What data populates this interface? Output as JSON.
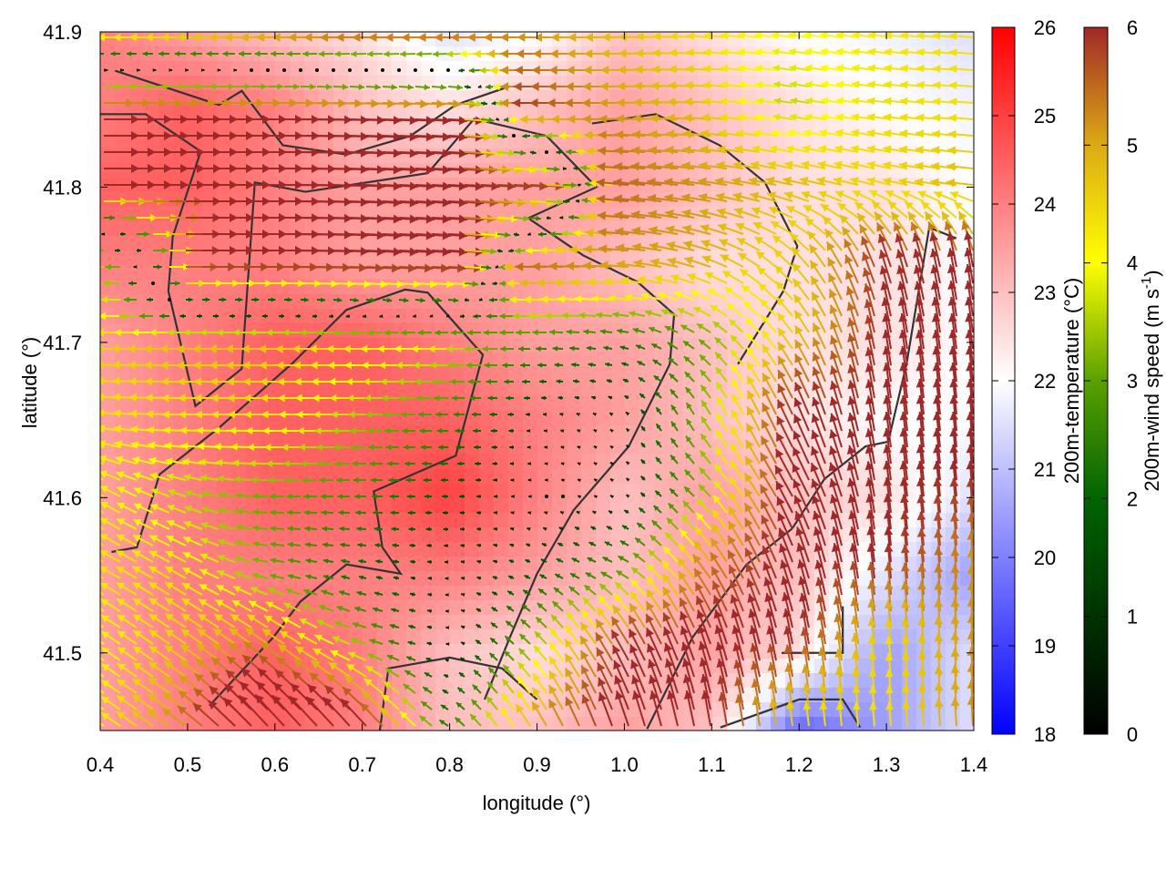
{
  "chart_data": {
    "type": "heatmap",
    "subtype": "vector-field-over-heatmap-with-contours",
    "xlabel": "longitude (°)",
    "ylabel": "latitude (°)",
    "xlim": [
      0.4,
      1.4
    ],
    "ylim": [
      41.45,
      41.9
    ],
    "xticks": [
      "0.4",
      "0.5",
      "0.6",
      "0.7",
      "0.8",
      "0.9",
      "1.0",
      "1.1",
      "1.2",
      "1.3",
      "1.4"
    ],
    "yticks": [
      "41.5",
      "41.6",
      "41.7",
      "41.8",
      "41.9"
    ],
    "grid_lon": [
      0.4,
      0.5,
      0.6,
      0.7,
      0.8,
      0.9,
      1.0,
      1.1,
      1.2,
      1.3,
      1.4
    ],
    "grid_lat": [
      41.9,
      41.85,
      41.8,
      41.75,
      41.7,
      41.65,
      41.6,
      41.55,
      41.5,
      41.45
    ],
    "temperature": [
      [
        24,
        23.5,
        23,
        22.5,
        21.5,
        22,
        23,
        22.5,
        22,
        21.8,
        21.5
      ],
      [
        24,
        24.5,
        24,
        23,
        22.5,
        23,
        23.5,
        23,
        22.5,
        22,
        21.8
      ],
      [
        24.5,
        24.5,
        24,
        23.5,
        23.5,
        23.5,
        23.5,
        23,
        22.5,
        22.5,
        22
      ],
      [
        24,
        24,
        24,
        23.5,
        23.5,
        23.5,
        23,
        22.5,
        22.5,
        22.5,
        22
      ],
      [
        23.5,
        24,
        24.5,
        24.5,
        24,
        23.5,
        23.5,
        23,
        22.5,
        22.5,
        22
      ],
      [
        23.5,
        24,
        24.5,
        24.5,
        24.5,
        24,
        23.5,
        23,
        22.5,
        22,
        22
      ],
      [
        23.5,
        24,
        24.5,
        24.5,
        25,
        24,
        23,
        23.5,
        23,
        22.5,
        21.5
      ],
      [
        23.5,
        24,
        24,
        24,
        24,
        23.5,
        23,
        23.5,
        23,
        21.5,
        20.5
      ],
      [
        23.5,
        24,
        24.5,
        24,
        23,
        22.5,
        23,
        23.5,
        22.5,
        20.5,
        21.5
      ],
      [
        23.5,
        24,
        24.5,
        24,
        23,
        23,
        23.5,
        23,
        19.5,
        20.5,
        21.5
      ]
    ],
    "wind_u": [
      [
        -4.5,
        -5,
        -5.5,
        -6,
        -6,
        -5,
        -4.5,
        -4,
        -3.5,
        -3.8,
        -4
      ],
      [
        6,
        6,
        6,
        6,
        6,
        -6,
        -5,
        -4.5,
        -3,
        -4,
        -4
      ],
      [
        6,
        6,
        6,
        6,
        6,
        6,
        -5.5,
        -5,
        -4.5,
        -4,
        -4.5
      ],
      [
        -5,
        6,
        6,
        6,
        6,
        -5.5,
        -5,
        -4.5,
        -3,
        -2,
        -1
      ],
      [
        -4.2,
        -4.5,
        -4.5,
        -4,
        -3.5,
        -2,
        -1.5,
        -2,
        -2.5,
        -1,
        -0.8
      ],
      [
        -4,
        -4,
        -4,
        -3,
        -2,
        -0.5,
        -0.3,
        -1.5,
        -2.5,
        -0.8,
        -0.5
      ],
      [
        -3.5,
        -3,
        -2.5,
        -2,
        -1,
        -0.2,
        -0.3,
        -2,
        -3,
        -0.8,
        -0.5
      ],
      [
        -3.5,
        -3.5,
        -2.5,
        -1.2,
        -0.5,
        -1,
        -2,
        -3,
        -2,
        -0.5,
        -0.3
      ],
      [
        -3,
        -3.5,
        -4,
        -3,
        -0.3,
        -2,
        -3,
        -2,
        -1,
        -0.5,
        -0.3
      ],
      [
        -3,
        -4,
        -5,
        -4.5,
        -1.5,
        -2.5,
        -2,
        -1,
        -0.5,
        -0.3,
        -0.3
      ]
    ],
    "wind_v": [
      [
        0,
        0,
        0,
        0,
        0,
        0,
        0,
        0.3,
        0.5,
        0.5,
        0.3
      ],
      [
        0,
        0,
        0,
        -0.2,
        -0.3,
        0,
        0,
        0.3,
        0.5,
        0.5,
        0.3
      ],
      [
        0,
        0,
        0,
        -0.3,
        -0.3,
        -0.3,
        0.5,
        0.7,
        1,
        1,
        0.5
      ],
      [
        0,
        0,
        0,
        -0.3,
        -0.3,
        0,
        0.3,
        1.5,
        3,
        5.5,
        6
      ],
      [
        0,
        0,
        0,
        0,
        0,
        0,
        0.3,
        1.5,
        3.5,
        6,
        6
      ],
      [
        0.5,
        0,
        0,
        0,
        0,
        0,
        0.3,
        2.5,
        5.5,
        6,
        6
      ],
      [
        2,
        1,
        0,
        0,
        0,
        0,
        0.2,
        2,
        5.5,
        6,
        6
      ],
      [
        2,
        2,
        0.5,
        0.3,
        0,
        0.5,
        1,
        4,
        6,
        6,
        5
      ],
      [
        2,
        2.5,
        3,
        1,
        0,
        2,
        5,
        6,
        6,
        4,
        5
      ],
      [
        2,
        3,
        5.5,
        5,
        1,
        4,
        6,
        6,
        4,
        4,
        5
      ]
    ],
    "contours": [
      [
        [
          0.4,
          41.847
        ],
        [
          0.452,
          41.847
        ],
        [
          0.515,
          41.823
        ],
        [
          0.483,
          41.768
        ],
        [
          0.478,
          41.733
        ],
        [
          0.509,
          41.659
        ],
        [
          0.562,
          41.683
        ],
        [
          0.577,
          41.803
        ],
        [
          0.635,
          41.797
        ],
        [
          0.775,
          41.809
        ],
        [
          0.828,
          41.844
        ],
        [
          0.911,
          41.833
        ],
        [
          0.968,
          41.8
        ],
        [
          0.89,
          41.78
        ],
        [
          0.953,
          41.756
        ],
        [
          1.015,
          41.739
        ],
        [
          1.057,
          41.718
        ],
        [
          1.052,
          41.686
        ],
        [
          1.005,
          41.633
        ],
        [
          0.942,
          41.592
        ],
        [
          0.9,
          41.551
        ],
        [
          0.869,
          41.51
        ],
        [
          0.84,
          41.47
        ]
      ],
      [
        [
          0.413,
          41.565
        ],
        [
          0.442,
          41.568
        ],
        [
          0.468,
          41.615
        ],
        [
          0.536,
          41.645
        ],
        [
          0.619,
          41.686
        ],
        [
          0.682,
          41.721
        ],
        [
          0.749,
          41.734
        ],
        [
          0.775,
          41.732
        ],
        [
          0.838,
          41.692
        ],
        [
          0.807,
          41.627
        ],
        [
          0.713,
          41.604
        ],
        [
          0.723,
          41.568
        ],
        [
          0.744,
          41.551
        ],
        [
          0.682,
          41.557
        ],
        [
          0.629,
          41.533
        ],
        [
          0.598,
          41.51
        ],
        [
          0.525,
          41.466
        ]
      ],
      [
        [
          1.026,
          41.451
        ],
        [
          1.078,
          41.51
        ],
        [
          1.14,
          41.557
        ],
        [
          1.192,
          41.58
        ],
        [
          1.229,
          41.612
        ],
        [
          1.276,
          41.633
        ],
        [
          1.302,
          41.636
        ],
        [
          1.323,
          41.686
        ],
        [
          1.349,
          41.774
        ],
        [
          1.38,
          41.767
        ]
      ],
      [
        [
          0.963,
          41.841
        ],
        [
          1.036,
          41.847
        ],
        [
          1.109,
          41.827
        ],
        [
          1.161,
          41.803
        ],
        [
          1.198,
          41.762
        ],
        [
          1.182,
          41.733
        ],
        [
          1.13,
          41.686
        ]
      ],
      [
        [
          0.417,
          41.875
        ],
        [
          0.536,
          41.853
        ],
        [
          0.562,
          41.862
        ],
        [
          0.609,
          41.827
        ],
        [
          0.682,
          41.821
        ],
        [
          0.755,
          41.833
        ],
        [
          0.807,
          41.853
        ],
        [
          0.869,
          41.865
        ]
      ],
      [
        [
          0.72,
          41.45
        ],
        [
          0.73,
          41.49
        ],
        [
          0.8,
          41.497
        ],
        [
          0.86,
          41.49
        ],
        [
          0.9,
          41.47
        ]
      ],
      [
        [
          1.11,
          41.452
        ],
        [
          1.2,
          41.47
        ],
        [
          1.25,
          41.47
        ],
        [
          1.27,
          41.452
        ]
      ],
      [
        [
          1.18,
          41.5
        ],
        [
          1.25,
          41.5
        ],
        [
          1.25,
          41.53
        ]
      ]
    ],
    "colorbars": [
      {
        "label": "200m-temperature (°C)",
        "range": [
          18,
          26
        ],
        "ticks": [
          "18",
          "19",
          "20",
          "21",
          "22",
          "23",
          "24",
          "25",
          "26"
        ],
        "palette": [
          "#0000ff",
          "#ffffff",
          "#ff0000"
        ]
      },
      {
        "label_main": "200m-wind speed (m s",
        "label_sup": "-1",
        "label_end": ")",
        "range": [
          0,
          6
        ],
        "ticks": [
          "0",
          "1",
          "2",
          "3",
          "4",
          "5",
          "6"
        ],
        "palette": [
          "#000000",
          "#006400",
          "#5aa000",
          "#ffff00",
          "#dcaa14",
          "#a02828"
        ]
      }
    ]
  }
}
